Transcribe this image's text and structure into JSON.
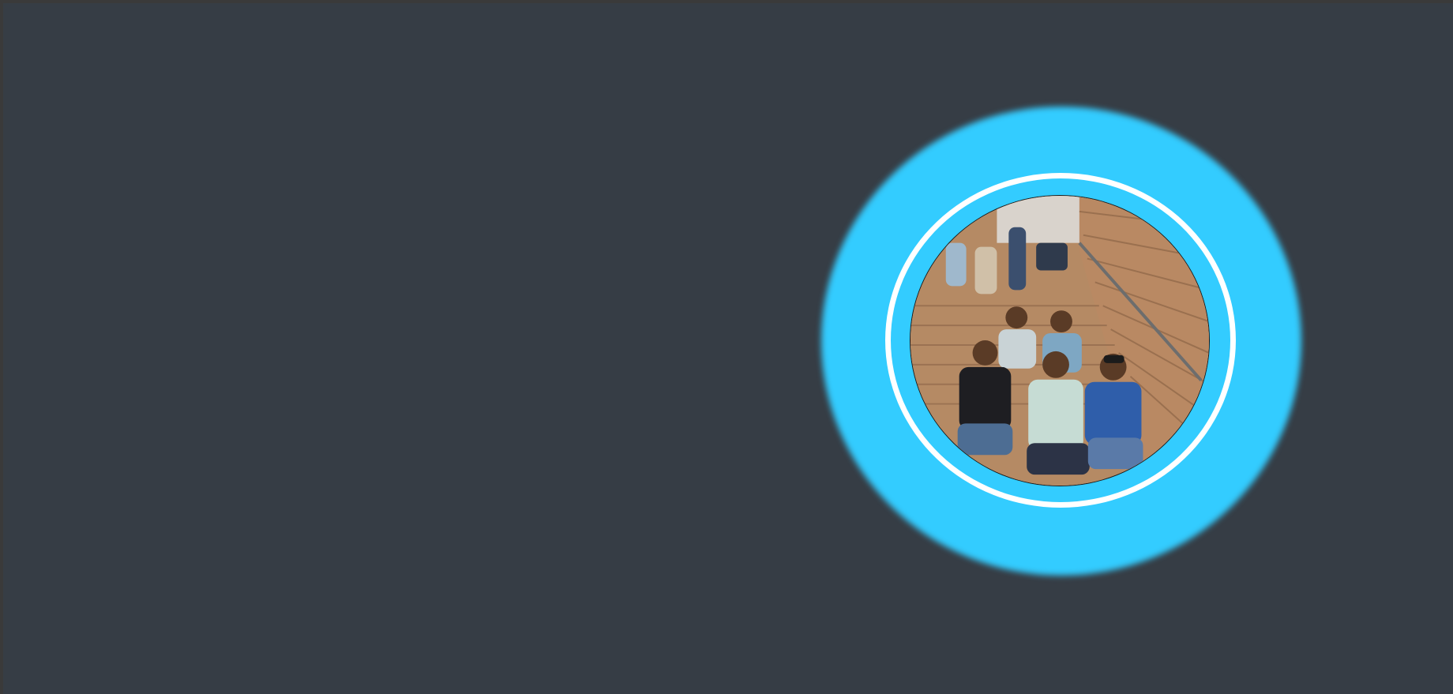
{
  "profile": {
    "photo_alt": "",
    "icon": "group-photo-icon"
  },
  "colors": {
    "page_background": "#363d45",
    "accent_ring": "#33ccff",
    "inner_ring": "#ffffff"
  }
}
